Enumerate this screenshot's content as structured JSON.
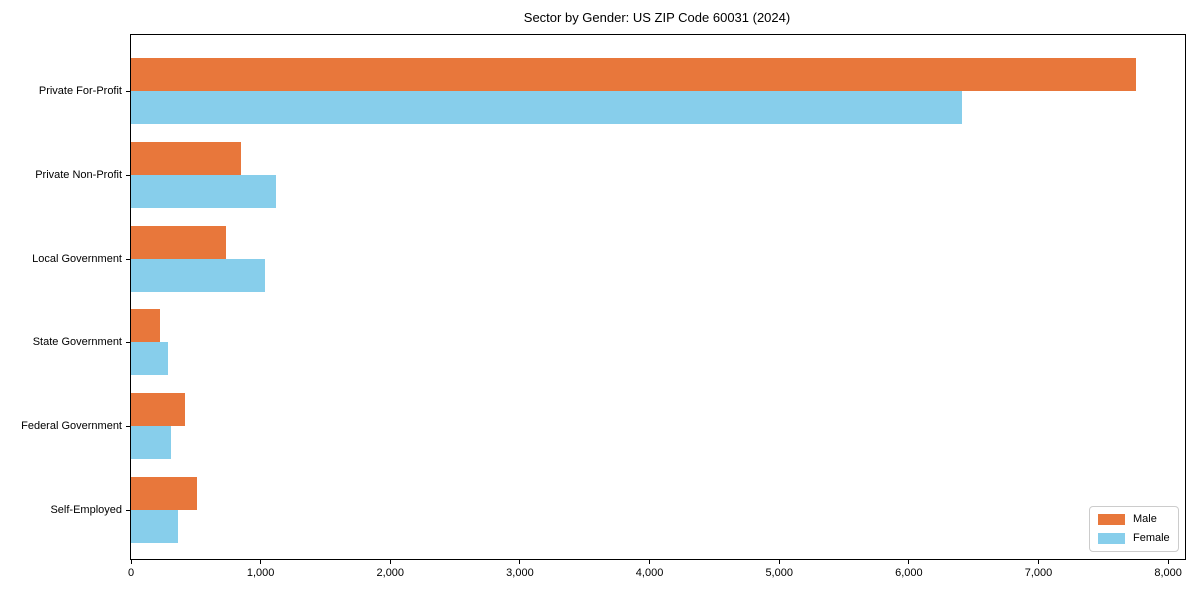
{
  "chart_data": {
    "type": "bar",
    "orientation": "horizontal",
    "title": "Sector by Gender: US ZIP Code 60031 (2024)",
    "categories": [
      "Private For-Profit",
      "Private Non-Profit",
      "Local Government",
      "State Government",
      "Federal Government",
      "Self-Employed"
    ],
    "series": [
      {
        "name": "Male",
        "color": "#e8773b",
        "values": [
          7750,
          850,
          730,
          225,
          420,
          510
        ]
      },
      {
        "name": "Female",
        "color": "#87ceeb",
        "values": [
          6410,
          1120,
          1030,
          285,
          310,
          360
        ]
      }
    ],
    "xlabel": "",
    "ylabel": "",
    "xlim": [
      0,
      8130
    ],
    "xticks": [
      0,
      1000,
      2000,
      3000,
      4000,
      5000,
      6000,
      7000,
      8000
    ],
    "xtick_labels": [
      "0",
      "1,000",
      "2,000",
      "3,000",
      "4,000",
      "5,000",
      "6,000",
      "7,000",
      "8,000"
    ],
    "grid": false,
    "legend": {
      "position": "lower right"
    },
    "colors": {
      "spine": "#000000",
      "text": "#000000",
      "legend_border": "#cccccc"
    }
  }
}
